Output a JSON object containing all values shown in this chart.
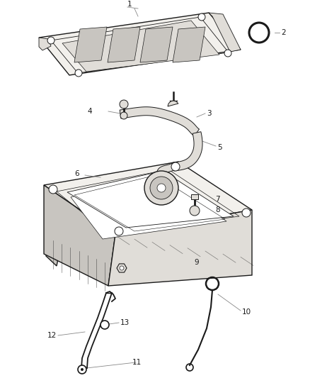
{
  "bg_color": "#ffffff",
  "line_color": "#1a1a1a",
  "label_color": "#1a1a1a",
  "leader_color": "#888888",
  "fill_light": "#f2f0ec",
  "fill_mid": "#e0ddd8",
  "fill_dark": "#c8c5c0",
  "figsize": [
    4.38,
    5.33
  ],
  "dpi": 100
}
